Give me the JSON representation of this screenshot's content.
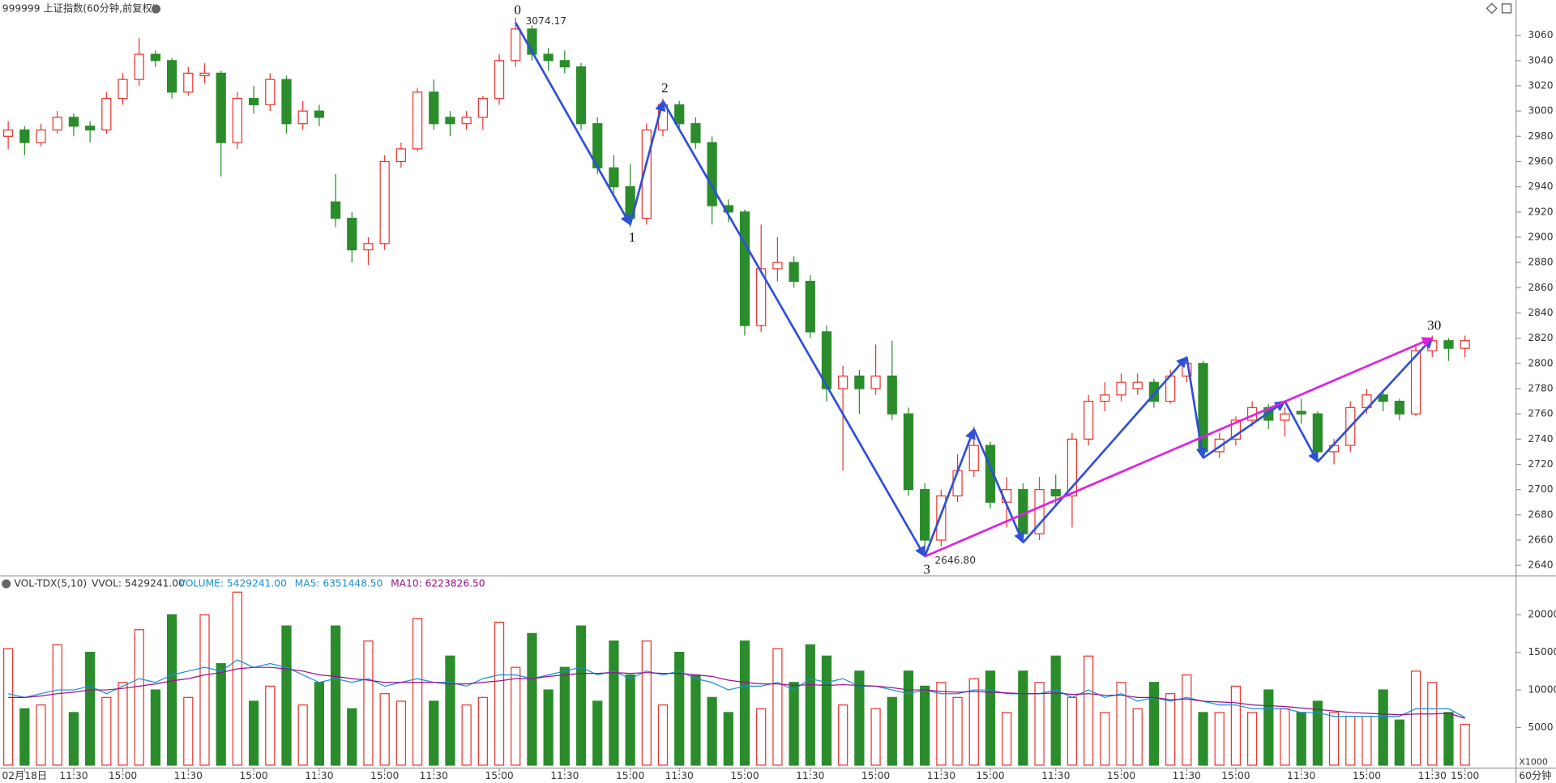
{
  "chart_data": [
    {
      "type": "candlestick",
      "title": "999999 上证指数(60分钟,前复权)",
      "up_color": "#e8352e",
      "down_color": "#2a8c2a",
      "ylim": [
        2634,
        3088
      ],
      "yticks": [
        2640,
        2660,
        2680,
        2700,
        2720,
        2740,
        2760,
        2780,
        2800,
        2820,
        2840,
        2860,
        2880,
        2900,
        2920,
        2940,
        2960,
        2980,
        3000,
        3020,
        3040,
        3060
      ],
      "ohlc": [
        [
          2980,
          2992,
          2970,
          2985
        ],
        [
          2985,
          2988,
          2965,
          2975
        ],
        [
          2975,
          2990,
          2972,
          2985
        ],
        [
          2985,
          3000,
          2982,
          2995
        ],
        [
          2995,
          2998,
          2980,
          2988
        ],
        [
          2988,
          2992,
          2975,
          2985
        ],
        [
          2985,
          3015,
          2982,
          3010
        ],
        [
          3010,
          3030,
          3005,
          3025
        ],
        [
          3025,
          3058,
          3020,
          3045
        ],
        [
          3045,
          3048,
          3035,
          3040
        ],
        [
          3040,
          3042,
          3010,
          3015
        ],
        [
          3015,
          3035,
          3012,
          3030
        ],
        [
          3028,
          3038,
          3022,
          3030
        ],
        [
          3030,
          3032,
          2948,
          2975
        ],
        [
          2975,
          3015,
          2970,
          3010
        ],
        [
          3010,
          3020,
          2998,
          3005
        ],
        [
          3005,
          3030,
          3000,
          3025
        ],
        [
          3025,
          3028,
          2982,
          2990
        ],
        [
          2990,
          3008,
          2985,
          3000
        ],
        [
          3000,
          3005,
          2988,
          2995
        ],
        [
          2928,
          2950,
          2908,
          2915
        ],
        [
          2915,
          2920,
          2880,
          2890
        ],
        [
          2890,
          2900,
          2878,
          2895
        ],
        [
          2895,
          2965,
          2890,
          2960
        ],
        [
          2960,
          2975,
          2955,
          2970
        ],
        [
          2970,
          3018,
          2968,
          3015
        ],
        [
          3015,
          3025,
          2985,
          2990
        ],
        [
          2995,
          3000,
          2980,
          2990
        ],
        [
          2990,
          3000,
          2985,
          2995
        ],
        [
          2995,
          3012,
          2985,
          3010
        ],
        [
          3010,
          3045,
          3005,
          3040
        ],
        [
          3040,
          3074.17,
          3035,
          3065
        ],
        [
          3065,
          3068,
          3040,
          3045
        ],
        [
          3045,
          3050,
          3032,
          3040
        ],
        [
          3040,
          3048,
          3030,
          3035
        ],
        [
          3035,
          3038,
          2985,
          2990
        ],
        [
          2990,
          2995,
          2950,
          2955
        ],
        [
          2955,
          2965,
          2935,
          2940
        ],
        [
          2940,
          2958,
          2908,
          2915
        ],
        [
          2915,
          2990,
          2910,
          2985
        ],
        [
          2985,
          3010,
          2980,
          3005
        ],
        [
          3005,
          3008,
          2985,
          2990
        ],
        [
          2990,
          2995,
          2970,
          2975
        ],
        [
          2975,
          2980,
          2910,
          2925
        ],
        [
          2925,
          2930,
          2912,
          2920
        ],
        [
          2920,
          2922,
          2822,
          2830
        ],
        [
          2830,
          2910,
          2825,
          2875
        ],
        [
          2875,
          2900,
          2865,
          2880
        ],
        [
          2880,
          2885,
          2860,
          2865
        ],
        [
          2865,
          2870,
          2820,
          2825
        ],
        [
          2825,
          2830,
          2770,
          2780
        ],
        [
          2780,
          2798,
          2715,
          2790
        ],
        [
          2790,
          2795,
          2760,
          2780
        ],
        [
          2780,
          2815,
          2775,
          2790
        ],
        [
          2790,
          2818,
          2755,
          2760
        ],
        [
          2760,
          2765,
          2695,
          2700
        ],
        [
          2700,
          2705,
          2646.8,
          2660
        ],
        [
          2660,
          2700,
          2655,
          2695
        ],
        [
          2695,
          2728,
          2690,
          2715
        ],
        [
          2715,
          2750,
          2710,
          2735
        ],
        [
          2735,
          2738,
          2685,
          2690
        ],
        [
          2690,
          2710,
          2670,
          2700
        ],
        [
          2700,
          2705,
          2658,
          2665
        ],
        [
          2665,
          2710,
          2660,
          2700
        ],
        [
          2700,
          2712,
          2688,
          2695
        ],
        [
          2695,
          2745,
          2670,
          2740
        ],
        [
          2740,
          2775,
          2735,
          2770
        ],
        [
          2770,
          2785,
          2762,
          2775
        ],
        [
          2775,
          2792,
          2770,
          2785
        ],
        [
          2780,
          2792,
          2775,
          2785
        ],
        [
          2785,
          2788,
          2765,
          2770
        ],
        [
          2770,
          2795,
          2768,
          2790
        ],
        [
          2790,
          2805,
          2785,
          2800
        ],
        [
          2800,
          2802,
          2725,
          2730
        ],
        [
          2730,
          2745,
          2725,
          2740
        ],
        [
          2740,
          2758,
          2735,
          2755
        ],
        [
          2755,
          2770,
          2750,
          2765
        ],
        [
          2765,
          2768,
          2748,
          2755
        ],
        [
          2755,
          2765,
          2742,
          2760
        ],
        [
          2762,
          2772,
          2752,
          2760
        ],
        [
          2760,
          2762,
          2722,
          2730
        ],
        [
          2730,
          2740,
          2720,
          2735
        ],
        [
          2735,
          2770,
          2730,
          2765
        ],
        [
          2765,
          2780,
          2760,
          2775
        ],
        [
          2775,
          2778,
          2762,
          2770
        ],
        [
          2770,
          2772,
          2755,
          2760
        ],
        [
          2760,
          2815,
          2758,
          2810
        ],
        [
          2810,
          2822,
          2805,
          2818
        ],
        [
          2818,
          2820,
          2802,
          2812
        ],
        [
          2812,
          2822,
          2805,
          2818
        ]
      ],
      "extreme_labels": [
        {
          "candle": 31,
          "label": "3074.17"
        },
        {
          "candle": 56,
          "label": "2646.80"
        }
      ],
      "waves": [
        {
          "color": "#2f4fd8",
          "points": [
            {
              "i": 31,
              "price": 3070,
              "label": "0"
            },
            {
              "i": 38,
              "price": 2910,
              "label": "1"
            },
            {
              "i": 40,
              "price": 3008,
              "label": "2"
            },
            {
              "i": 56,
              "price": 2647,
              "label": "3"
            },
            {
              "i": 59,
              "price": 2748
            },
            {
              "i": 62,
              "price": 2658
            },
            {
              "i": 72,
              "price": 2805
            },
            {
              "i": 73,
              "price": 2725
            },
            {
              "i": 78,
              "price": 2770
            },
            {
              "i": 80,
              "price": 2722
            },
            {
              "i": 87,
              "price": 2820,
              "label": "30"
            }
          ]
        },
        {
          "color": "#e020e0",
          "points": [
            {
              "i": 56,
              "price": 2647
            },
            {
              "i": 87,
              "price": 2820
            }
          ]
        }
      ]
    },
    {
      "type": "bar",
      "title": "VOL-TDX(5,10)",
      "legend": [
        {
          "text": "VVOL: 5429241.00",
          "color": "#333333"
        },
        {
          "text": "VOLUME: 5429241.00",
          "color": "#1a8fd6"
        },
        {
          "text": "MA5: 6351448.50",
          "color": "#1a8fd6"
        },
        {
          "text": "MA10: 6223826.50",
          "color": "#9b0f87"
        }
      ],
      "unit_label": "X1000",
      "period_label": "60分钟",
      "ylim": [
        0,
        24900
      ],
      "yticks": [
        5000,
        10000,
        15000,
        20000
      ],
      "categories": [
        null,
        "02月18日",
        null,
        null,
        "11:30",
        null,
        null,
        "15:00",
        null,
        null,
        null,
        "11:30",
        null,
        null,
        null,
        "15:00",
        null,
        null,
        null,
        "11:30",
        null,
        null,
        null,
        "15:00",
        null,
        null,
        "11:30",
        null,
        null,
        null,
        "15:00",
        null,
        null,
        null,
        "11:30",
        null,
        null,
        null,
        "15:00",
        null,
        null,
        "11:30",
        null,
        null,
        null,
        "15:00",
        null,
        null,
        null,
        "11:30",
        null,
        null,
        null,
        "15:00",
        null,
        null,
        null,
        "11:30",
        null,
        null,
        "15:00",
        null,
        null,
        null,
        "11:30",
        null,
        null,
        null,
        "15:00",
        null,
        null,
        null,
        "11:30",
        null,
        null,
        "15:00",
        null,
        null,
        null,
        "11:30",
        null,
        null,
        null,
        "15:00",
        null,
        null,
        null,
        "11:30",
        null,
        "15:00"
      ],
      "series": [
        {
          "values": [
            15500,
            7500,
            8000,
            16000,
            7000,
            15000,
            9000,
            11000,
            18000,
            10000,
            20000,
            9000,
            20000,
            13500,
            23000,
            8500,
            10500,
            18500,
            8000,
            11000,
            18500,
            7500,
            16500,
            9500,
            8500,
            19500,
            8500,
            14500,
            8000,
            9000,
            19000,
            13000,
            17500,
            10000,
            13000,
            18500,
            8500,
            16500,
            12000,
            16500,
            8000,
            15000,
            12000,
            9000,
            7000,
            16500,
            7500,
            15500,
            11000,
            16000,
            14500,
            8000,
            12500,
            7500,
            9000,
            12500,
            10500,
            11000,
            9000,
            11500,
            12500,
            7000,
            12500,
            11000,
            14500,
            9000,
            14500,
            7000,
            11000,
            7500,
            11000,
            9500,
            12000,
            7000,
            7000,
            10500,
            7000,
            10000,
            7500,
            7000,
            8500,
            7000,
            6500,
            6500,
            10000,
            6000,
            12500,
            11000,
            7000,
            5429
          ]
        },
        {
          "color": "#1a8fd6",
          "values": [
            9500,
            9000,
            9500,
            10000,
            10000,
            10500,
            9500,
            10500,
            11500,
            11000,
            12000,
            12500,
            13000,
            12500,
            14000,
            13000,
            13500,
            13000,
            12000,
            11000,
            11500,
            11000,
            11500,
            10500,
            11000,
            11500,
            11000,
            11000,
            10500,
            11500,
            12000,
            12000,
            11500,
            12000,
            12500,
            13000,
            12000,
            12500,
            11500,
            12500,
            12000,
            12500,
            11500,
            11000,
            10000,
            10500,
            10500,
            11000,
            10000,
            11500,
            11000,
            11500,
            10500,
            10500,
            10000,
            9500,
            10000,
            9500,
            9500,
            10000,
            10000,
            9500,
            9500,
            9500,
            10000,
            9000,
            10000,
            9000,
            9500,
            8500,
            9000,
            8500,
            9000,
            8500,
            8000,
            8000,
            7500,
            7500,
            7500,
            7000,
            7000,
            6500,
            6500,
            6500,
            6500,
            6500,
            7500,
            7500,
            7500,
            6351
          ]
        },
        {
          "color": "#9b0f87",
          "values": [
            9000,
            9000,
            9200,
            9500,
            9700,
            10000,
            10000,
            10200,
            10500,
            10800,
            11200,
            11500,
            12000,
            12300,
            12800,
            13000,
            13000,
            12800,
            12500,
            12000,
            11800,
            11500,
            11300,
            11000,
            11000,
            11000,
            11000,
            10800,
            10800,
            11000,
            11200,
            11500,
            11500,
            11800,
            12000,
            12200,
            12200,
            12300,
            12200,
            12300,
            12200,
            12200,
            12000,
            11800,
            11300,
            11000,
            10800,
            10800,
            10600,
            10700,
            10600,
            10700,
            10600,
            10500,
            10300,
            10000,
            10000,
            9800,
            9700,
            9800,
            9700,
            9600,
            9500,
            9500,
            9600,
            9400,
            9500,
            9300,
            9300,
            9000,
            9000,
            8700,
            8800,
            8500,
            8400,
            8300,
            8000,
            7900,
            7800,
            7600,
            7400,
            7200,
            7000,
            6900,
            6800,
            6700,
            6800,
            6800,
            6900,
            6224
          ]
        }
      ]
    }
  ]
}
